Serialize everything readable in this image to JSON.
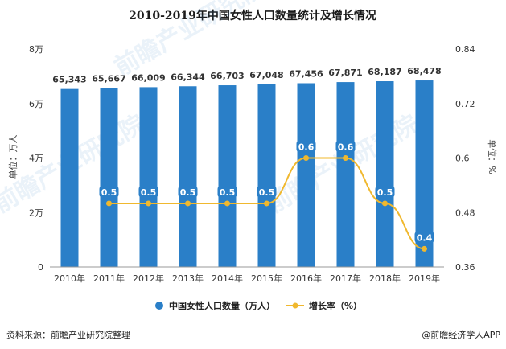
{
  "chart_data": {
    "type": "bar+line",
    "title": "2010-2019年中国女性人口数量统计及增长情况",
    "categories": [
      "2010年",
      "2011年",
      "2012年",
      "2013年",
      "2014年",
      "2015年",
      "2016年",
      "2017年",
      "2018年",
      "2019年"
    ],
    "series": [
      {
        "name": "中国女性人口数量（万人）",
        "type": "bar",
        "axis": "left",
        "color": "#2a7fc8",
        "values": [
          65343,
          65667,
          66009,
          66344,
          66703,
          67048,
          67456,
          67871,
          68187,
          68478
        ],
        "labels": [
          "65,343",
          "65,667",
          "66,009",
          "66,344",
          "66,703",
          "67,048",
          "67,456",
          "67,871",
          "68,187",
          "68,478"
        ]
      },
      {
        "name": "增长率（%）",
        "type": "line",
        "axis": "right",
        "color": "#f0b82e",
        "values": [
          null,
          0.5,
          0.5,
          0.5,
          0.5,
          0.5,
          0.6,
          0.6,
          0.5,
          0.4
        ],
        "labels": [
          "",
          "0.5",
          "0.5",
          "0.5",
          "0.5",
          "0.5",
          "0.6",
          "0.6",
          "0.5",
          "0.4"
        ],
        "label_bg": "#2a7fc8"
      }
    ],
    "y_left": {
      "label": "单位：万人",
      "ylim": [
        0,
        80000
      ],
      "ticks": [
        0,
        20000,
        40000,
        60000,
        80000
      ],
      "tick_labels": [
        "0",
        "2万",
        "4万",
        "6万",
        "8万"
      ]
    },
    "y_right": {
      "label": "单位：%",
      "ylim": [
        0.36,
        0.84
      ],
      "ticks": [
        0.36,
        0.48,
        0.6,
        0.72,
        0.84
      ],
      "tick_labels": [
        "0.36",
        "0.48",
        "0.6",
        "0.72",
        "0.84"
      ]
    },
    "legend_position": "bottom",
    "grid": false
  },
  "footer": {
    "source": "资料来源：前瞻产业研究院整理",
    "brand": "@前瞻经济学人APP"
  },
  "watermark": "前瞻产业研究院"
}
